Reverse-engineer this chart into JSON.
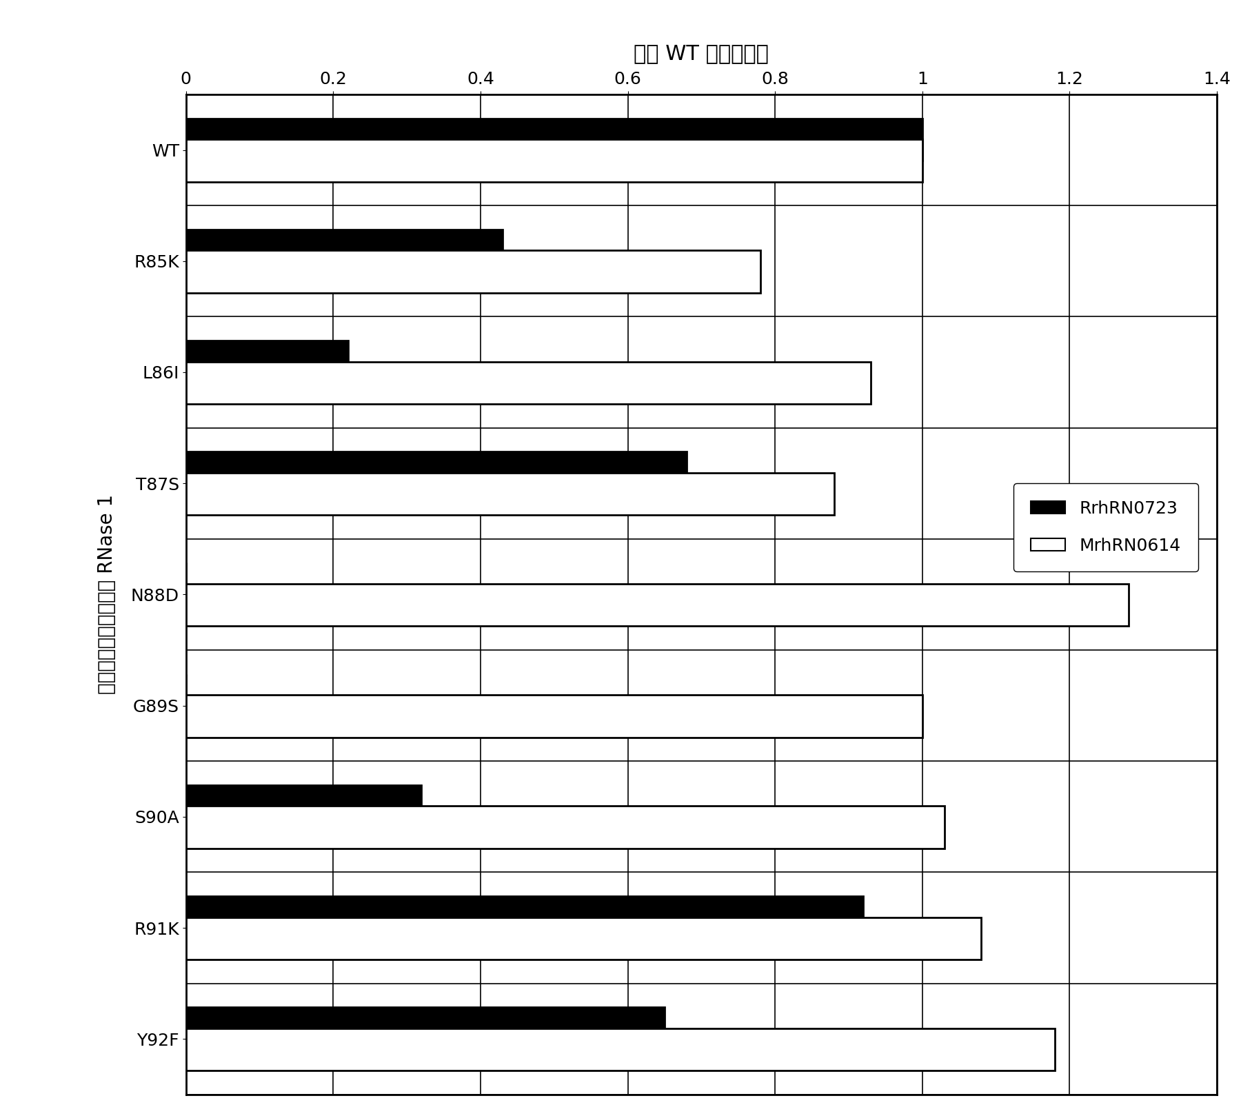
{
  "categories": [
    "WT",
    "R85K",
    "L86I",
    "T87S",
    "N88D",
    "G89S",
    "S90A",
    "R91K",
    "Y92F"
  ],
  "RrhRN0723": [
    1.0,
    0.43,
    0.22,
    0.68,
    0.0,
    0.0,
    0.32,
    0.92,
    0.65
  ],
  "MrhRN0614": [
    1.0,
    0.78,
    0.93,
    0.88,
    1.28,
    1.0,
    1.03,
    1.08,
    1.18
  ],
  "xlabel": "对于 WT 的相对活性",
  "ylabel": "导入氨基酸置换突变的 RNase 1",
  "xlim": [
    0,
    1.4
  ],
  "xticks": [
    0,
    0.2,
    0.4,
    0.6,
    0.8,
    1.0,
    1.2,
    1.4
  ],
  "xtick_labels": [
    "0",
    "0.2",
    "0.4",
    "0.6",
    "0.8",
    "1",
    "1.2",
    "1.4"
  ],
  "legend_labels": [
    "RrhRN0723",
    "MrhRN0614"
  ],
  "bar_colors": [
    "#000000",
    "#ffffff"
  ],
  "bar_edgecolor": "#000000",
  "background_color": "#ffffff",
  "xlabel_fontsize": 22,
  "ylabel_fontsize": 20,
  "tick_fontsize": 18,
  "legend_fontsize": 18,
  "bar_height": 0.38,
  "bar_linewidth": 2.0,
  "grid_linewidth": 1.2
}
